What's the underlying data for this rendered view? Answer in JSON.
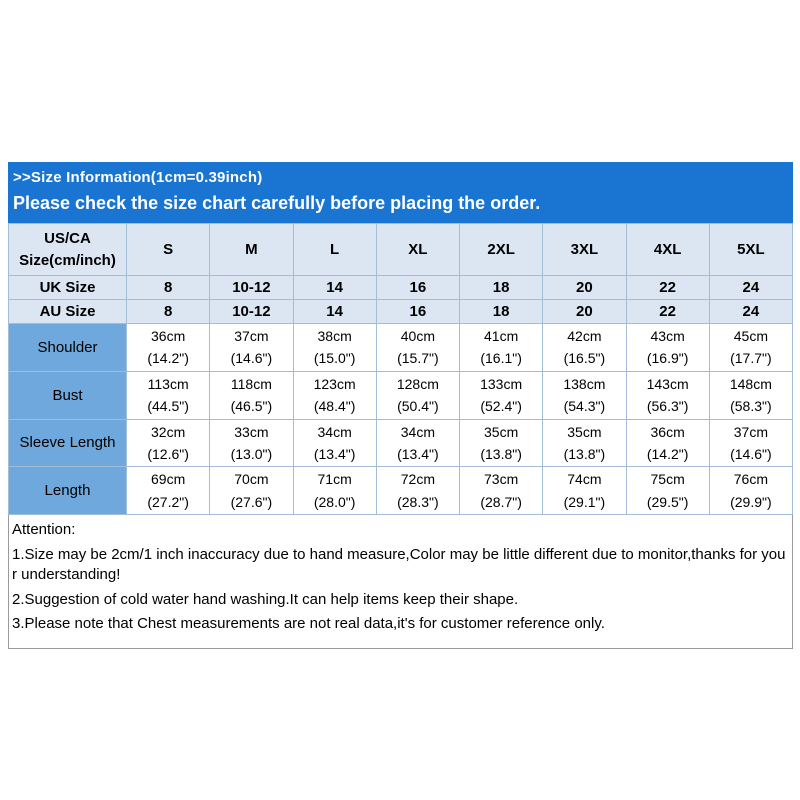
{
  "banner": {
    "title": ">>Size Information(1cm=0.39inch)",
    "subtitle": "Please check the size chart carefully before placing the order.",
    "bg_color": "#1a75d2"
  },
  "colors": {
    "banner_blue": "#1a75d2",
    "header_row_blue": "#dce6f2",
    "label_column_blue": "#6fa8dc",
    "grid_line": "#a3bdd6"
  },
  "chart_data": {
    "type": "table",
    "title": ">>Size Information(1cm=0.39inch)",
    "corner_header": {
      "line1": "US/CA",
      "line2": "Size(cm/inch)"
    },
    "size_columns": [
      "S",
      "M",
      "L",
      "XL",
      "2XL",
      "3XL",
      "4XL",
      "5XL"
    ],
    "uk_size_row": {
      "label": "UK Size",
      "values": [
        "8",
        "10-12",
        "14",
        "16",
        "18",
        "20",
        "22",
        "24"
      ]
    },
    "au_size_row": {
      "label": "AU  Size",
      "values": [
        "8",
        "10-12",
        "14",
        "16",
        "18",
        "20",
        "22",
        "24"
      ]
    },
    "measurement_rows": [
      {
        "label": "Shoulder",
        "cells": [
          {
            "cm": "36cm",
            "inch": "(14.2\")"
          },
          {
            "cm": "37cm",
            "inch": "(14.6\")"
          },
          {
            "cm": "38cm",
            "inch": "(15.0\")"
          },
          {
            "cm": "40cm",
            "inch": "(15.7\")"
          },
          {
            "cm": "41cm",
            "inch": "(16.1\")"
          },
          {
            "cm": "42cm",
            "inch": "(16.5\")"
          },
          {
            "cm": "43cm",
            "inch": "(16.9\")"
          },
          {
            "cm": "45cm",
            "inch": "(17.7\")"
          }
        ]
      },
      {
        "label": "Bust",
        "cells": [
          {
            "cm": "113cm",
            "inch": "(44.5\")"
          },
          {
            "cm": "118cm",
            "inch": "(46.5\")"
          },
          {
            "cm": "123cm",
            "inch": "(48.4\")"
          },
          {
            "cm": "128cm",
            "inch": "(50.4\")"
          },
          {
            "cm": "133cm",
            "inch": "(52.4\")"
          },
          {
            "cm": "138cm",
            "inch": "(54.3\")"
          },
          {
            "cm": "143cm",
            "inch": "(56.3\")"
          },
          {
            "cm": "148cm",
            "inch": "(58.3\")"
          }
        ]
      },
      {
        "label": "Sleeve Length",
        "cells": [
          {
            "cm": "32cm",
            "inch": "(12.6\")"
          },
          {
            "cm": "33cm",
            "inch": "(13.0\")"
          },
          {
            "cm": "34cm",
            "inch": "(13.4\")"
          },
          {
            "cm": "34cm",
            "inch": "(13.4\")"
          },
          {
            "cm": "35cm",
            "inch": "(13.8\")"
          },
          {
            "cm": "35cm",
            "inch": "(13.8\")"
          },
          {
            "cm": "36cm",
            "inch": "(14.2\")"
          },
          {
            "cm": "37cm",
            "inch": "(14.6\")"
          }
        ]
      },
      {
        "label": "Length",
        "cells": [
          {
            "cm": "69cm",
            "inch": "(27.2\")"
          },
          {
            "cm": "70cm",
            "inch": "(27.6\")"
          },
          {
            "cm": "71cm",
            "inch": "(28.0\")"
          },
          {
            "cm": "72cm",
            "inch": "(28.3\")"
          },
          {
            "cm": "73cm",
            "inch": "(28.7\")"
          },
          {
            "cm": "74cm",
            "inch": "(29.1\")"
          },
          {
            "cm": "75cm",
            "inch": "(29.5\")"
          },
          {
            "cm": "76cm",
            "inch": "(29.9\")"
          }
        ]
      }
    ]
  },
  "attention": {
    "title": "Attention:",
    "notes": [
      "1.Size may be 2cm/1 inch inaccuracy due to hand measure,Color may be little different due to monitor,thanks for your understanding!",
      "2.Suggestion of cold water hand washing.It can help items keep their shape.",
      "3.Please note that Chest measurements are not real data,it's for customer reference only."
    ]
  }
}
